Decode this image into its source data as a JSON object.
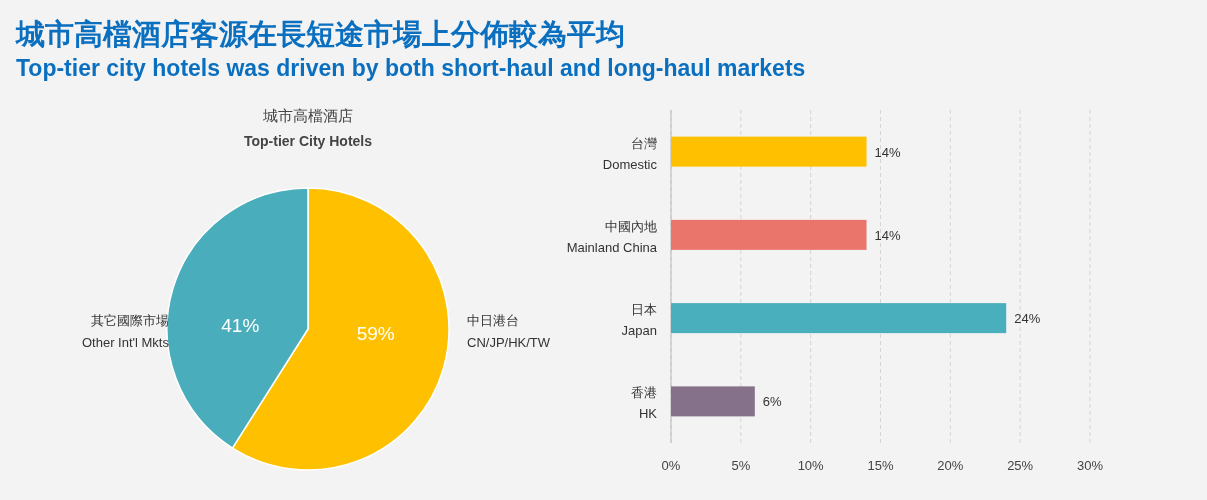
{
  "chart_data": [
    {
      "type": "other",
      "title": "城市高檔酒店客源在長短途市場上分佈較為平均",
      "subtitle": "Top-tier city hotels was driven by both short-haul and long-haul markets"
    },
    {
      "type": "pie",
      "title": "城市高檔酒店",
      "subtitle": "Top-tier City Hotels",
      "categories": [
        "中日港台\nCN/JP/HK/TW",
        "其它國際市場\nOther Int'l Mkts"
      ],
      "values": [
        59,
        41
      ],
      "colors": [
        "#ffc000",
        "#4aadbb"
      ],
      "value_labels": [
        "59%",
        "41%"
      ]
    },
    {
      "type": "bar",
      "orientation": "horizontal",
      "categories": [
        "台灣\nDomestic",
        "中國內地\nMainland China",
        "日本\nJapan",
        "香港\nHK"
      ],
      "values": [
        14,
        14,
        24,
        6
      ],
      "colors": [
        "#ffc000",
        "#e9756b",
        "#4aafbd",
        "#857189"
      ],
      "value_labels": [
        "14%",
        "14%",
        "24%",
        "6%"
      ],
      "xlim": [
        0,
        30
      ],
      "xticks": [
        {
          "value": 0,
          "label": "0%"
        },
        {
          "value": 5,
          "label": "5%"
        },
        {
          "value": 10,
          "label": "10%"
        },
        {
          "value": 15,
          "label": "15%"
        },
        {
          "value": 20,
          "label": "20%"
        },
        {
          "value": 25,
          "label": "25%"
        },
        {
          "value": 30,
          "label": "30%"
        }
      ],
      "grid": "x"
    }
  ]
}
